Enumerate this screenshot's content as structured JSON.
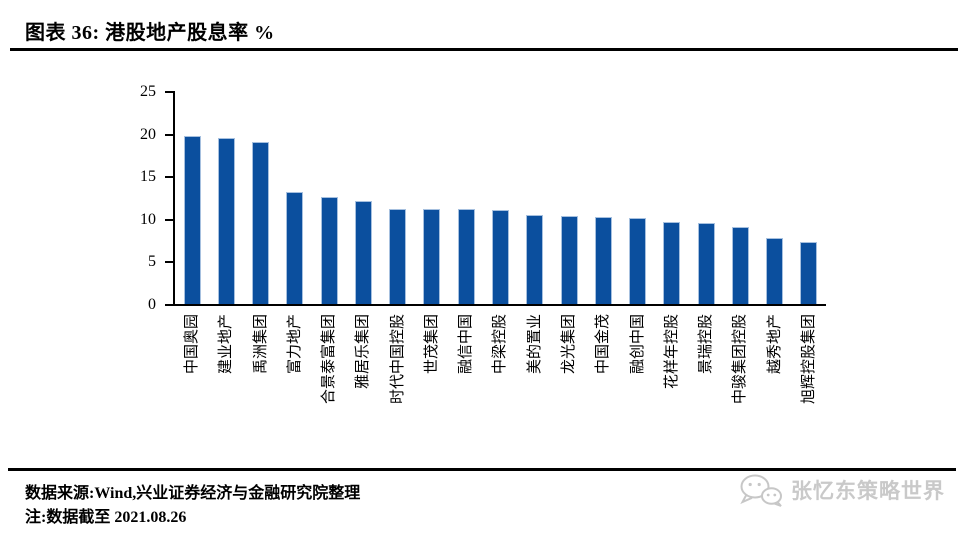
{
  "header": {
    "title": "图表 36: 港股地产股息率 %"
  },
  "chart_data": {
    "type": "bar",
    "title": "港股地产股息率 %",
    "categories": [
      "中国奥园",
      "建业地产",
      "禹洲集团",
      "富力地产",
      "合景泰富集团",
      "雅居乐集团",
      "时代中国控股",
      "世茂集团",
      "融信中国",
      "中梁控股",
      "美的置业",
      "龙光集团",
      "中国金茂",
      "融创中国",
      "花样年控股",
      "景瑞控股",
      "中骏集团控股",
      "越秀地产",
      "旭辉控股集团"
    ],
    "values": [
      19.7,
      19.5,
      19.0,
      13.2,
      12.6,
      12.1,
      11.2,
      11.2,
      11.1,
      11.0,
      10.4,
      10.3,
      10.2,
      10.1,
      9.6,
      9.5,
      9.0,
      7.8,
      7.3
    ],
    "xlabel": "",
    "ylabel": "",
    "ylim": [
      0,
      25
    ],
    "yticks": [
      0,
      5,
      10,
      15,
      20,
      25
    ],
    "grid": false,
    "legend_position": "none",
    "bar_color": "#0b4f9e",
    "axis_color": "#000000"
  },
  "footer": {
    "source": "数据来源:Wind,兴业证券经济与金融研究院整理",
    "note": "注:数据截至 2021.08.26",
    "watermark": "张忆东策略世界",
    "watermark_color": "#c9c9c9"
  }
}
